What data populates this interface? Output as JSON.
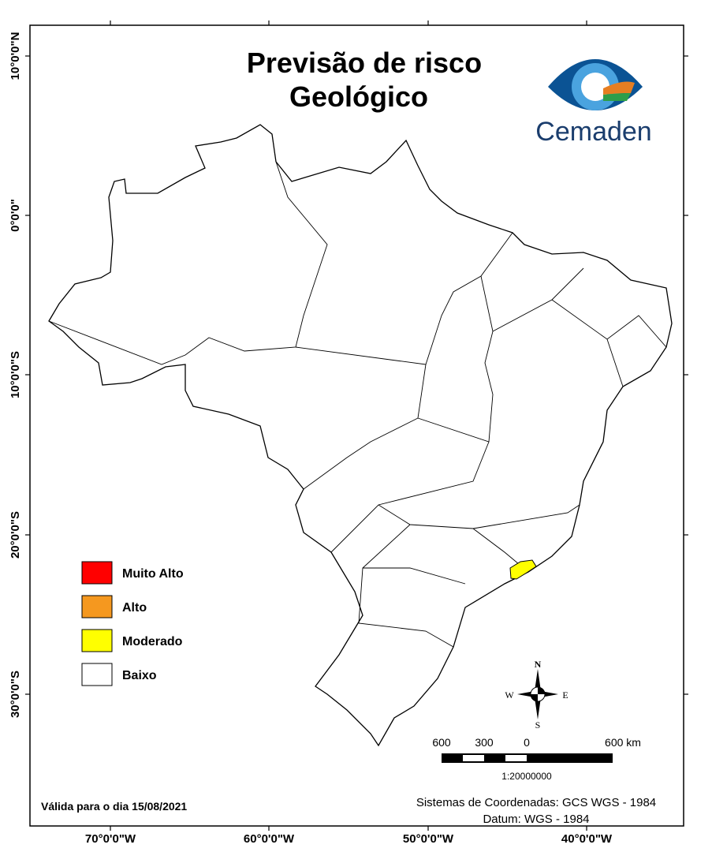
{
  "title": [
    "Previsão de risco",
    "Geológico"
  ],
  "logo_text": "Cemaden",
  "longitude_labels": [
    "70°0'0\"W",
    "60°0'0\"W",
    "50°0'0\"W",
    "40°0'0\"W"
  ],
  "latitude_labels": [
    "10°0'0\"N",
    "0°0'0\"",
    "10°0'0\"S",
    "20°0'0\"S",
    "30°0'0\"S"
  ],
  "legend": [
    {
      "label": "Muito Alto",
      "color": "#ff0000"
    },
    {
      "label": "Alto",
      "color": "#f5981f"
    },
    {
      "label": "Moderado",
      "color": "#ffff00"
    },
    {
      "label": "Baixo",
      "color": "#ffffff"
    }
  ],
  "compass": {
    "north": "N",
    "east": "E",
    "south": "S",
    "west": "W"
  },
  "scale": {
    "labels": [
      "600",
      "300",
      "0",
      "600 km"
    ],
    "ratio": "1:20000000"
  },
  "validity": "Válida para o dia  15/08/2021",
  "footer": [
    "Sistemas de Coordenadas: GCS WGS - 1984",
    "Datum: WGS - 1984"
  ]
}
